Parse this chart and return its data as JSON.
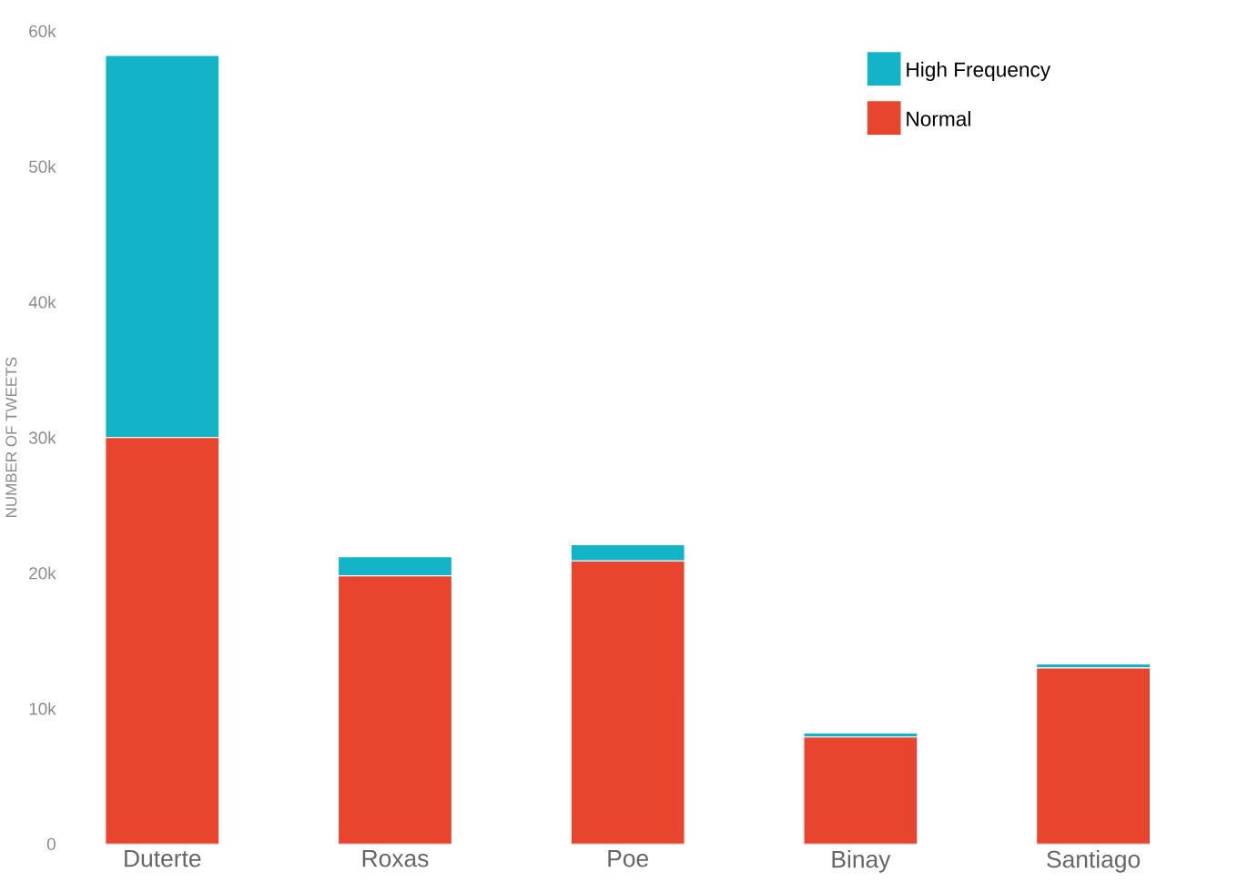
{
  "chart_data": {
    "type": "bar",
    "stacked": true,
    "ylabel": "NUMBER OF TWEETS",
    "categories": [
      "Duterte",
      "Roxas",
      "Poe",
      "Binay",
      "Santiago"
    ],
    "series": [
      {
        "name": "Normal",
        "color": "#e8452f",
        "values": [
          30000,
          19800,
          20900,
          7900,
          13000
        ]
      },
      {
        "name": "High Frequency",
        "color": "#14b4c8",
        "values": [
          28200,
          1400,
          1200,
          300,
          300
        ]
      }
    ],
    "ylim": [
      0,
      60000
    ],
    "yticks": [
      {
        "value": 0,
        "label": "0"
      },
      {
        "value": 10000,
        "label": "10k"
      },
      {
        "value": 20000,
        "label": "20k"
      },
      {
        "value": 30000,
        "label": "30k"
      },
      {
        "value": 40000,
        "label": "40k"
      },
      {
        "value": 50000,
        "label": "50k"
      },
      {
        "value": 60000,
        "label": "60k"
      }
    ],
    "legend": "top right"
  }
}
